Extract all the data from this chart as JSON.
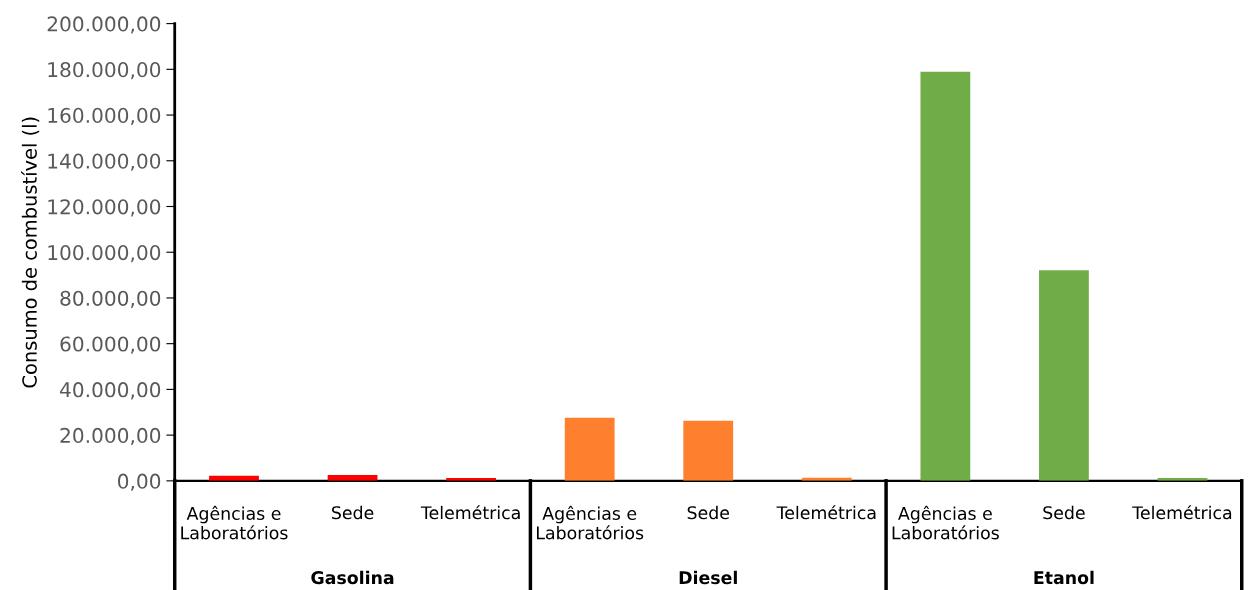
{
  "chart_data": {
    "type": "bar",
    "ylabel": "Consumo de combustível (l)",
    "categories": [
      "Agências e\nLaboratórios",
      "Sede",
      "Telemétrica",
      "Agências e\nLaboratórios",
      "Sede",
      "Telemétrica",
      "Agências e\nLaboratórios",
      "Sede",
      "Telemétrica"
    ],
    "series": [
      {
        "color": "#ff0000",
        "values": [
          2200,
          2600,
          1200,
          null,
          null,
          null,
          null,
          null,
          null
        ]
      },
      {
        "color": "#fe7f2d",
        "values": [
          null,
          null,
          null,
          27600,
          26300,
          1400,
          null,
          null,
          null
        ]
      },
      {
        "color": "#70ad47",
        "values": [
          null,
          null,
          null,
          null,
          null,
          null,
          178900,
          92100,
          1200
        ]
      }
    ],
    "ylim": [
      0,
      200000
    ],
    "yticks": [
      {
        "value": 0,
        "label": "0,00"
      },
      {
        "value": 20000,
        "label": "20.000,00"
      },
      {
        "value": 40000,
        "label": "40.000,00"
      },
      {
        "value": 60000,
        "label": "60.000,00"
      },
      {
        "value": 80000,
        "label": "80.000,00"
      },
      {
        "value": 100000,
        "label": "100.000,00"
      },
      {
        "value": 120000,
        "label": "120.000,00"
      },
      {
        "value": 140000,
        "label": "140.000,00"
      },
      {
        "value": 160000,
        "label": "160.000,00"
      },
      {
        "value": 180000,
        "label": "180.000,00"
      },
      {
        "value": 200000,
        "label": "200.000,00"
      }
    ],
    "annotations": [
      "Gasolina",
      "Diesel",
      "Etanol"
    ],
    "grid": false,
    "legend": false
  }
}
